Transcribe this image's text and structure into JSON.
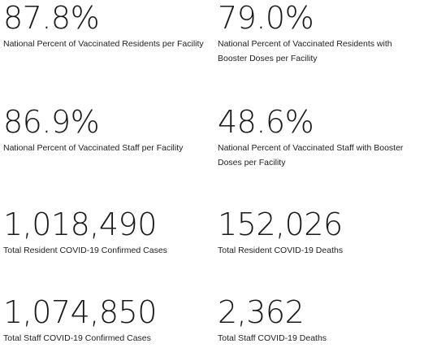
{
  "stats": [
    {
      "value": "87.8%",
      "label": "National Percent of Vaccinated Residents per Facility"
    },
    {
      "value": "79.0%",
      "label": "National Percent of Vaccinated Residents with Booster Doses per Facility"
    },
    {
      "value": "86.9%",
      "label": "National Percent of Vaccinated Staff per Facility"
    },
    {
      "value": "48.6%",
      "label": "National Percent of Vaccinated Staff with Booster Doses per Facility"
    },
    {
      "value": "1,018,490",
      "label": "Total Resident COVID-19 Confirmed Cases"
    },
    {
      "value": "152,026",
      "label": "Total Resident COVID-19 Deaths"
    },
    {
      "value": "1,074,850",
      "label": "Total Staff COVID-19 Confirmed Cases"
    },
    {
      "value": "2,362",
      "label": "Total Staff COVID-19 Deaths"
    }
  ]
}
